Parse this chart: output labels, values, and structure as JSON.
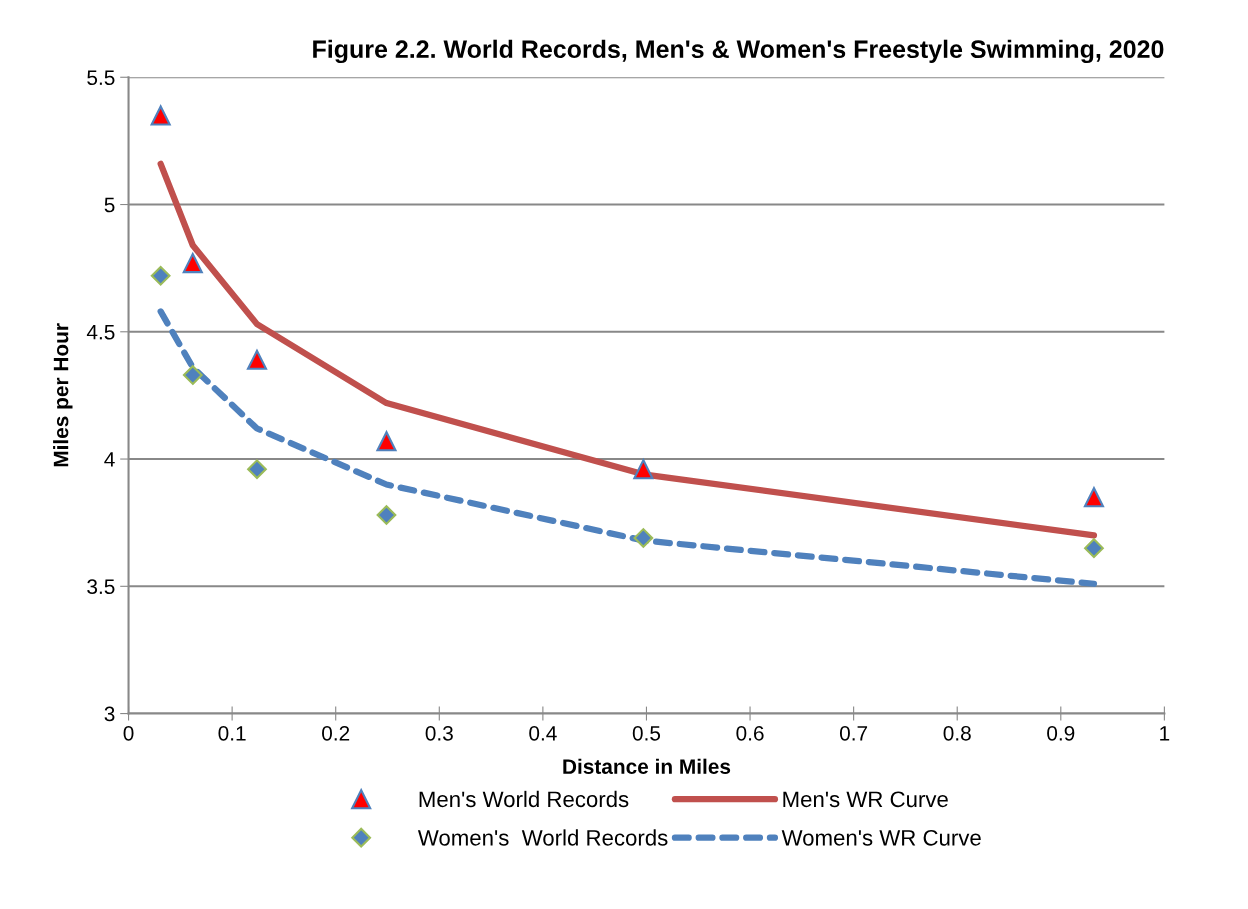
{
  "chart_data": {
    "type": "scatter",
    "title": "Figure 2.2. World Records, Men's & Women's Freestyle Swimming, 2020",
    "xlabel": "Distance in Miles",
    "ylabel": "Miles per Hour",
    "x": [
      0.031,
      0.062,
      0.124,
      0.249,
      0.497,
      0.932
    ],
    "series": [
      {
        "name": "Men's World Records",
        "marker": "triangle",
        "color": "#ff0000",
        "values": [
          5.35,
          4.77,
          4.39,
          4.07,
          3.96,
          3.85
        ]
      },
      {
        "name": "Men's WR Curve",
        "type": "line",
        "marker": "none",
        "line_style": "solid",
        "color": "#c0504d",
        "values": [
          5.16,
          4.84,
          4.53,
          4.22,
          3.94,
          3.7
        ]
      },
      {
        "name": "Women's  World Records",
        "marker": "diamond",
        "color": "#4f81bd",
        "values": [
          4.72,
          4.33,
          3.96,
          3.78,
          3.69,
          3.65
        ]
      },
      {
        "name": "Women's WR Curve",
        "type": "line",
        "marker": "none",
        "line_style": "dashed",
        "color": "#4f81bd",
        "values": [
          4.58,
          4.36,
          4.12,
          3.9,
          3.68,
          3.51
        ]
      }
    ],
    "xlim": [
      0,
      1
    ],
    "xticks": [
      0,
      0.1,
      0.2,
      0.3,
      0.4,
      0.5,
      0.6,
      0.7,
      0.8,
      0.9,
      1
    ],
    "ylim": [
      3,
      5.5
    ],
    "yticks": [
      3,
      3.5,
      4,
      4.5,
      5,
      5.5
    ],
    "grid": "y",
    "legend": "bottom"
  }
}
